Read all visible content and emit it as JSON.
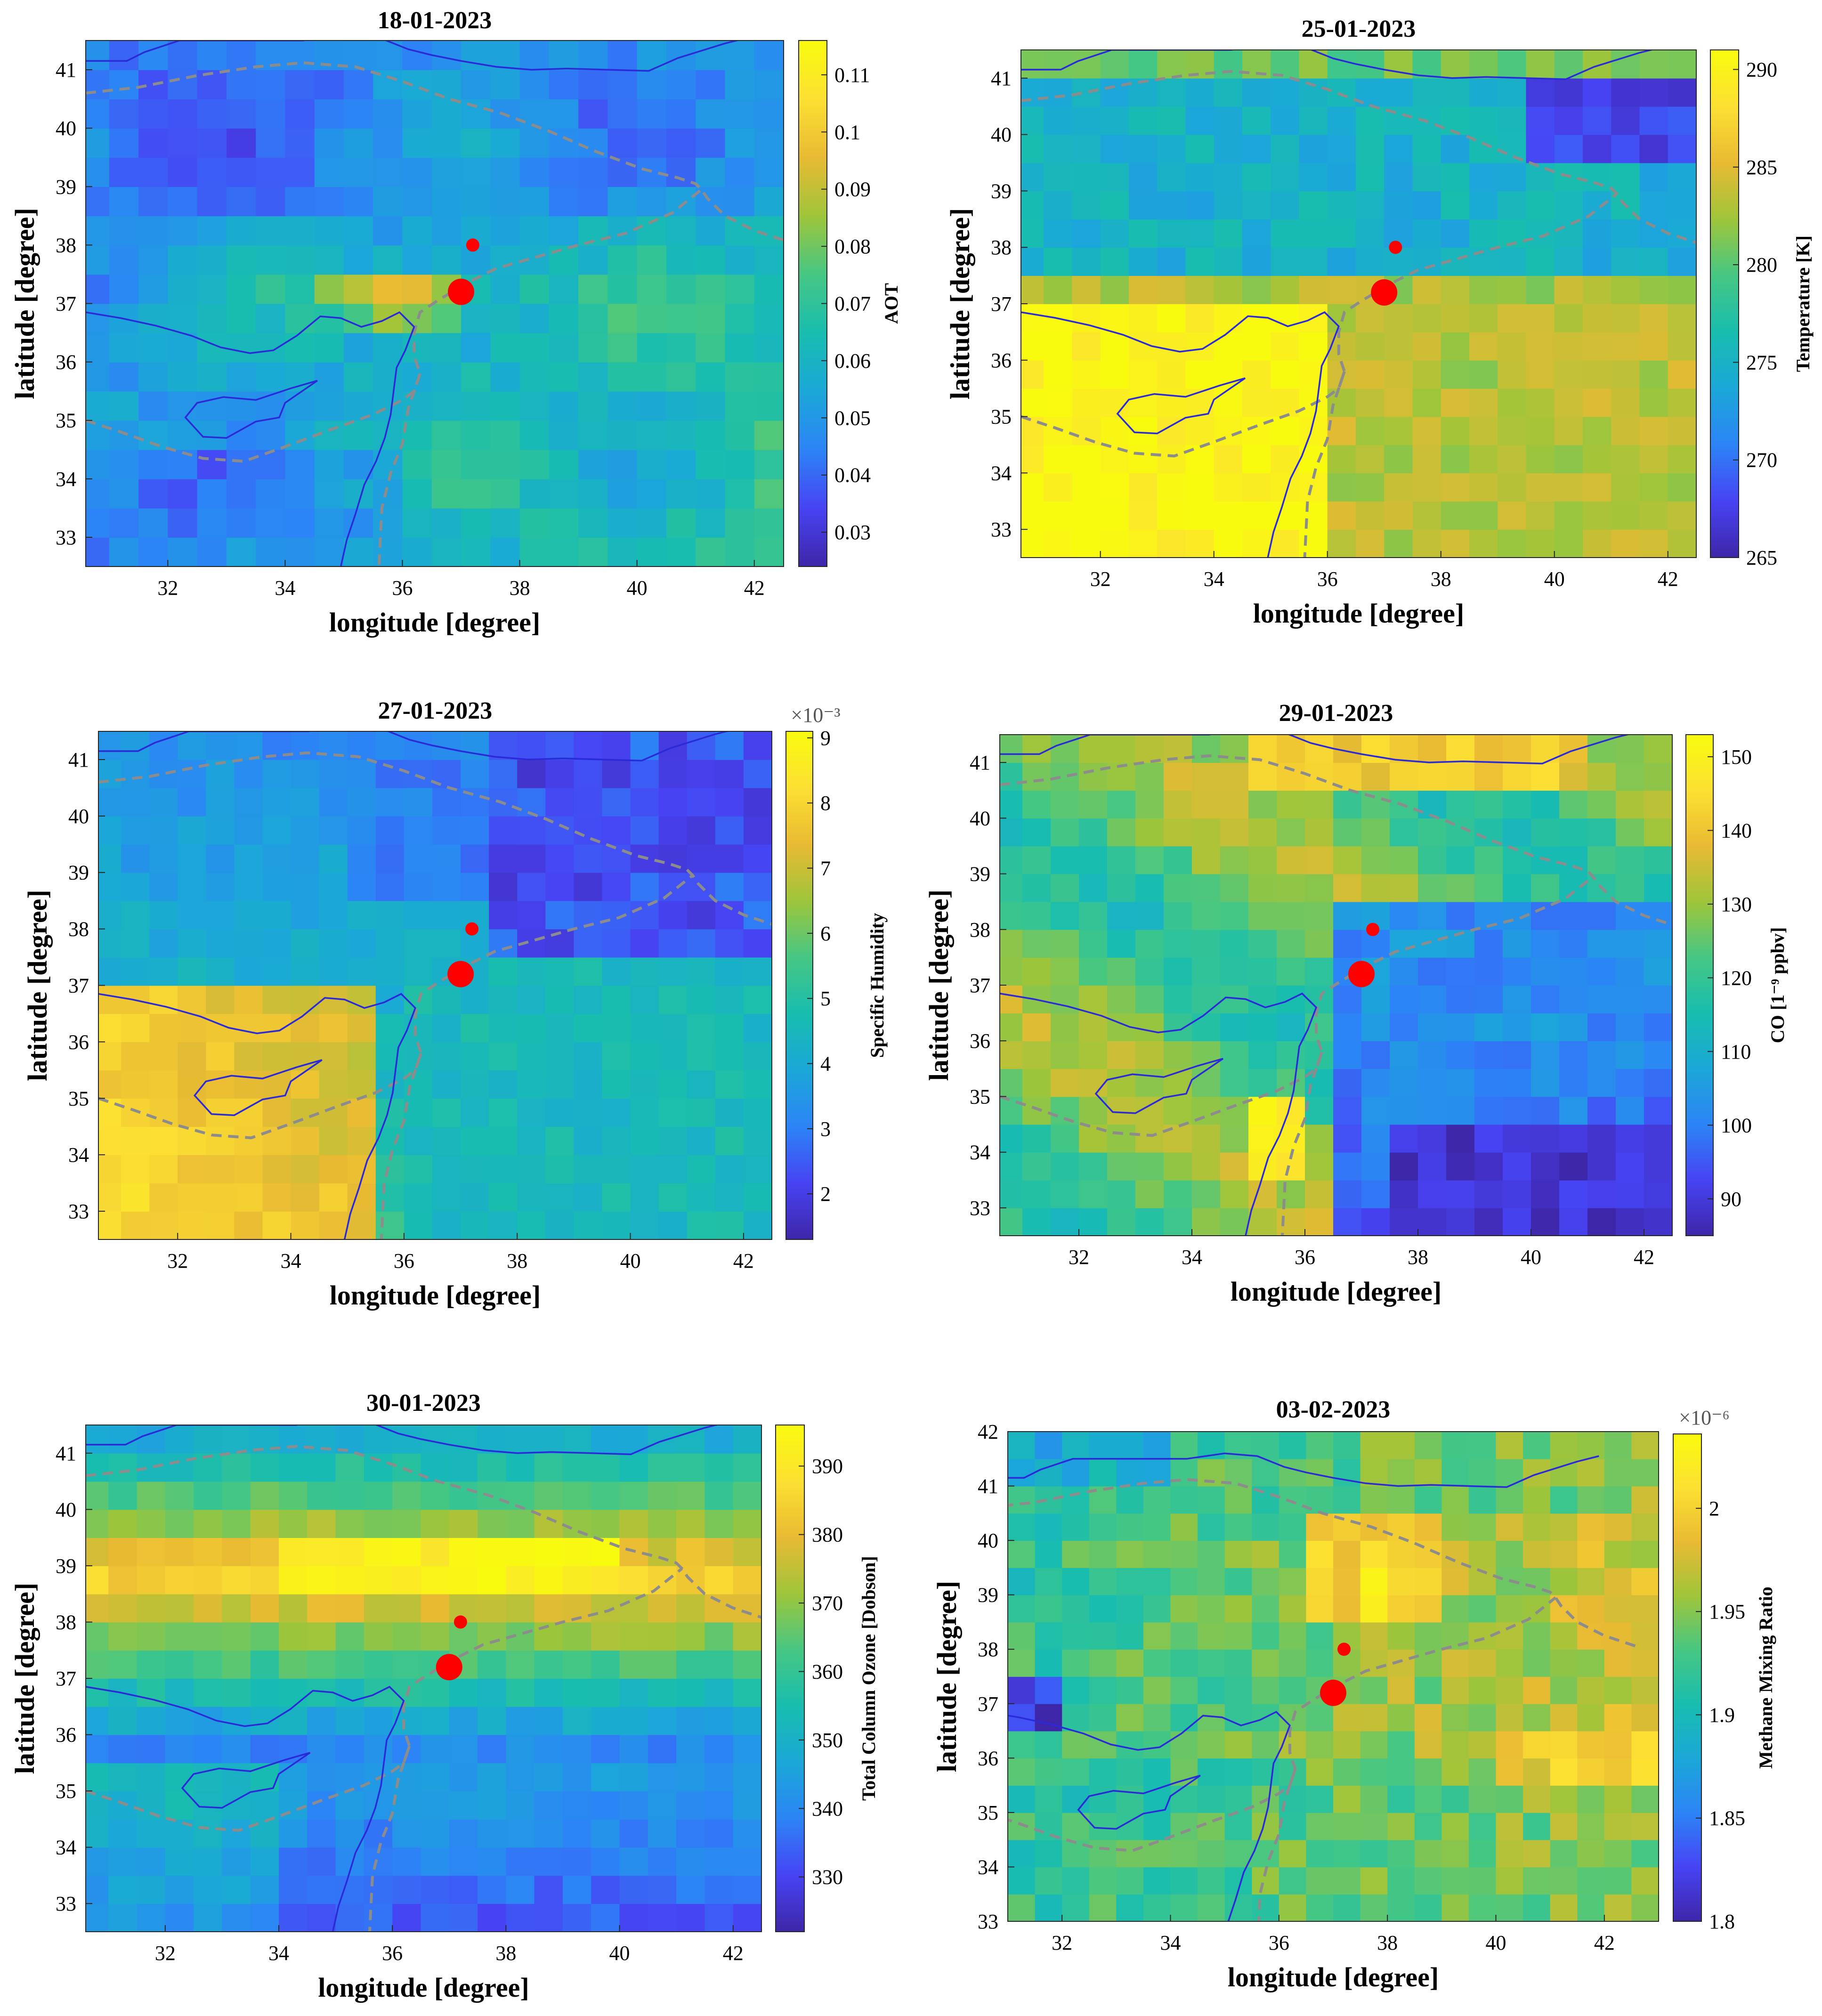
{
  "chart_data": [
    {
      "type": "heatmap",
      "title": "18-01-2023",
      "xlabel": "longitude [degree]",
      "ylabel": "latitude [degree]",
      "xlim": [
        30.6,
        42.5
      ],
      "ylim": [
        32.5,
        41.5
      ],
      "xticks": [
        "32",
        "34",
        "36",
        "38",
        "40",
        "42"
      ],
      "yticks": [
        "33",
        "34",
        "35",
        "36",
        "37",
        "38",
        "39",
        "40",
        "41"
      ],
      "colorbar": {
        "label": "AOT",
        "exponent": "",
        "range": [
          0.024,
          0.116
        ],
        "ticks": [
          "0.03",
          "0.04",
          "0.05",
          "0.06",
          "0.07",
          "0.08",
          "0.09",
          "0.1",
          "0.11"
        ]
      },
      "field": "aot",
      "seed": 3
    },
    {
      "type": "heatmap",
      "title": "25-01-2023",
      "xlabel": "longitude [degree]",
      "ylabel": "latitude [degree]",
      "xlim": [
        30.6,
        42.5
      ],
      "ylim": [
        32.5,
        41.5
      ],
      "xticks": [
        "32",
        "34",
        "36",
        "38",
        "40",
        "42"
      ],
      "yticks": [
        "33",
        "34",
        "35",
        "36",
        "37",
        "38",
        "39",
        "40",
        "41"
      ],
      "colorbar": {
        "label": "Temperature [K]",
        "exponent": "",
        "range": [
          265,
          291
        ],
        "ticks": [
          "265",
          "270",
          "275",
          "280",
          "285",
          "290"
        ]
      },
      "field": "temp",
      "seed": 5
    },
    {
      "type": "heatmap",
      "title": "27-01-2023",
      "xlabel": "longitude [degree]",
      "ylabel": "latitude [degree]",
      "xlim": [
        30.6,
        42.5
      ],
      "ylim": [
        32.5,
        41.5
      ],
      "xticks": [
        "32",
        "34",
        "36",
        "38",
        "40",
        "42"
      ],
      "yticks": [
        "33",
        "34",
        "35",
        "36",
        "37",
        "38",
        "39",
        "40",
        "41"
      ],
      "colorbar": {
        "label": "Specific Humidity",
        "exponent": "×10⁻³",
        "range": [
          1.3,
          9.1
        ],
        "ticks": [
          "2",
          "3",
          "4",
          "5",
          "6",
          "7",
          "8",
          "9"
        ]
      },
      "field": "hum",
      "seed": 7
    },
    {
      "type": "heatmap",
      "title": "29-01-2023",
      "xlabel": "longitude [degree]",
      "ylabel": "latitude [degree]",
      "xlim": [
        30.6,
        42.5
      ],
      "ylim": [
        32.5,
        41.5
      ],
      "xticks": [
        "32",
        "34",
        "36",
        "38",
        "40",
        "42"
      ],
      "yticks": [
        "33",
        "34",
        "35",
        "36",
        "37",
        "38",
        "39",
        "40",
        "41"
      ],
      "colorbar": {
        "label": "CO [1⁻⁹ ppbv]",
        "exponent": "",
        "range": [
          85,
          153
        ],
        "ticks": [
          "90",
          "100",
          "110",
          "120",
          "130",
          "140",
          "150"
        ]
      },
      "field": "co",
      "seed": 11
    },
    {
      "type": "heatmap",
      "title": "30-01-2023",
      "xlabel": "longitude [degree]",
      "ylabel": "latitude [degree]",
      "xlim": [
        30.6,
        42.5
      ],
      "ylim": [
        32.5,
        41.5
      ],
      "xticks": [
        "32",
        "34",
        "36",
        "38",
        "40",
        "42"
      ],
      "yticks": [
        "33",
        "34",
        "35",
        "36",
        "37",
        "38",
        "39",
        "40",
        "41"
      ],
      "colorbar": {
        "label": "Total Column Ozone [Dobson]",
        "exponent": "",
        "range": [
          322,
          396
        ],
        "ticks": [
          "330",
          "340",
          "350",
          "360",
          "370",
          "380",
          "390"
        ]
      },
      "field": "ozone",
      "seed": 13
    },
    {
      "type": "heatmap",
      "title": "03-02-2023",
      "xlabel": "longitude [degree]",
      "ylabel": "latitude [degree]",
      "xlim": [
        31.0,
        43.0
      ],
      "ylim": [
        33.0,
        42.0
      ],
      "xticks": [
        "32",
        "34",
        "36",
        "38",
        "40",
        "42"
      ],
      "yticks": [
        "33",
        "34",
        "35",
        "36",
        "37",
        "38",
        "39",
        "40",
        "41",
        "42"
      ],
      "colorbar": {
        "label": "Methane Mixing Ratio",
        "exponent": "×10⁻⁶",
        "range": [
          1.8,
          2.036
        ],
        "ticks": [
          "1.8",
          "1.85",
          "1.9",
          "1.95",
          "2"
        ]
      },
      "field": "methane",
      "seed": 17
    }
  ],
  "markers": [
    {
      "name": "epicenter-small",
      "lon": 37.2,
      "lat": 38.0
    },
    {
      "name": "epicenter-large",
      "lon": 37.0,
      "lat": 37.2
    }
  ],
  "colors": {
    "marker": "#ff0000",
    "coastline": "#2a2ad8",
    "border": "#8c8c8c",
    "colormap": [
      "#3e26a8",
      "#4743f4",
      "#2c84f6",
      "#1ba7d8",
      "#18bdaf",
      "#46c783",
      "#9fc53a",
      "#e9ba33",
      "#fce032",
      "#f9fb0e"
    ]
  }
}
